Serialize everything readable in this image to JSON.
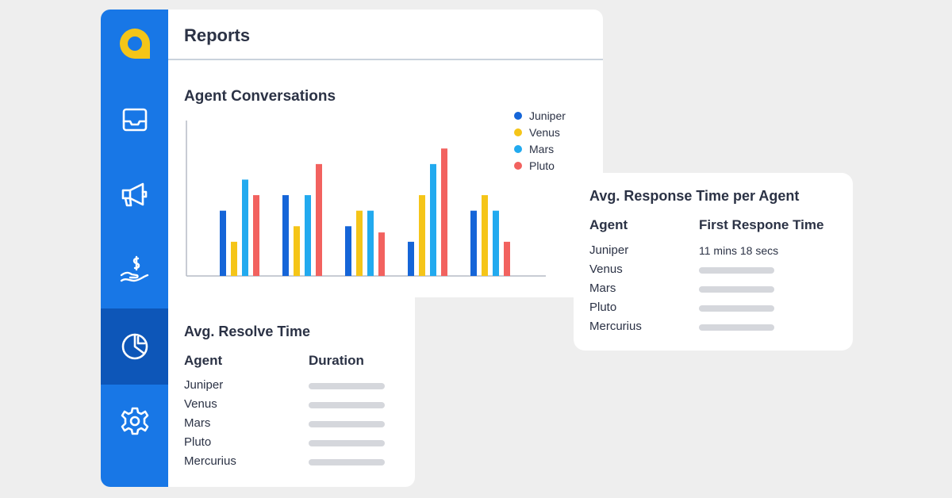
{
  "colors": {
    "sidebar": "#1877e6",
    "sidebar_active": "#0d56b8",
    "logo": "#f5c518",
    "juniper": "#1565d8",
    "venus": "#f5c518",
    "mars": "#22aaef",
    "pluto": "#f2625f"
  },
  "sidebar": {
    "logo_icon": "quiq-logo",
    "items": [
      {
        "icon": "inbox-icon",
        "active": false
      },
      {
        "icon": "megaphone-icon",
        "active": false
      },
      {
        "icon": "money-hand-icon",
        "active": false
      },
      {
        "icon": "pie-chart-icon",
        "active": true
      },
      {
        "icon": "gear-icon",
        "active": false
      }
    ]
  },
  "header": {
    "title": "Reports"
  },
  "chart": {
    "title": "Agent Conversations"
  },
  "chart_data": {
    "type": "bar",
    "categories": [
      "",
      "",
      "",
      "",
      ""
    ],
    "series": [
      {
        "name": "Juniper",
        "values": [
          42,
          52,
          32,
          22,
          42
        ]
      },
      {
        "name": "Venus",
        "values": [
          22,
          32,
          42,
          52,
          52
        ]
      },
      {
        "name": "Mars",
        "values": [
          62,
          52,
          42,
          72,
          42
        ]
      },
      {
        "name": "Pluto",
        "values": [
          52,
          72,
          28,
          82,
          22
        ]
      }
    ],
    "ylim": [
      0,
      100
    ],
    "grid": false,
    "legend": "top-right",
    "xlabel": "",
    "ylabel": ""
  },
  "resolve": {
    "title": "Avg. Resolve Time",
    "col_agent": "Agent",
    "col_duration": "Duration",
    "rows": [
      "Juniper",
      "Venus",
      "Mars",
      "Pluto",
      "Mercurius"
    ]
  },
  "response": {
    "title": "Avg. Response Time per Agent",
    "col_agent": "Agent",
    "col_time": "First Respone Time",
    "rows": [
      {
        "agent": "Juniper",
        "value": "11 mins 18 secs"
      },
      {
        "agent": "Venus",
        "value": ""
      },
      {
        "agent": "Mars",
        "value": ""
      },
      {
        "agent": "Pluto",
        "value": ""
      },
      {
        "agent": "Mercurius",
        "value": ""
      }
    ]
  }
}
